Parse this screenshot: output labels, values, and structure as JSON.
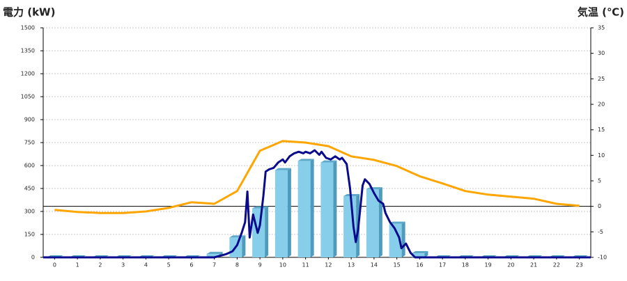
{
  "chart_data": {
    "type": "combo",
    "y_title": "電力 (kW)",
    "y2_title": "気温 (℃)",
    "y_title_color": "#1a6fc4",
    "y2_title_color": "#f39a1e",
    "categories": [
      "0",
      "1",
      "2",
      "3",
      "4",
      "5",
      "6",
      "7",
      "8",
      "9",
      "10",
      "11",
      "12",
      "13",
      "14",
      "15",
      "16",
      "17",
      "18",
      "19",
      "20",
      "21",
      "22",
      "23"
    ],
    "xlim": [
      -0.5,
      23.5
    ],
    "ylim": [
      0,
      1500
    ],
    "yticks": [
      0,
      150,
      300,
      450,
      600,
      750,
      900,
      1050,
      1200,
      1350,
      1500
    ],
    "y2lim": [
      -10,
      35
    ],
    "y2ticks": [
      -10,
      -5,
      0,
      5,
      10,
      15,
      20,
      25,
      30,
      35
    ],
    "grid": true,
    "series": [
      {
        "type": "bar",
        "color": "#87ceeb",
        "values": [
          0,
          0,
          0,
          0,
          0,
          0,
          0,
          22,
          130,
          320,
          570,
          630,
          620,
          400,
          445,
          220,
          27,
          0,
          0,
          0,
          0,
          0,
          0,
          0
        ]
      },
      {
        "type": "line",
        "color": "#0a0a8c",
        "x": [
          -0.5,
          7.0,
          7.5,
          7.8,
          8.0,
          8.2,
          8.35,
          8.45,
          8.55,
          8.7,
          8.9,
          9.0,
          9.15,
          9.25,
          9.4,
          9.6,
          9.8,
          10.0,
          10.1,
          10.3,
          10.5,
          10.7,
          10.9,
          11.0,
          11.2,
          11.4,
          11.6,
          11.7,
          11.9,
          12.1,
          12.3,
          12.5,
          12.6,
          12.8,
          12.95,
          13.1,
          13.2,
          13.3,
          13.5,
          13.6,
          13.8,
          14.0,
          14.2,
          14.4,
          14.5,
          14.7,
          14.9,
          15.1,
          15.2,
          15.4,
          15.6,
          15.8,
          23.5
        ],
        "values": [
          0,
          0,
          20,
          40,
          80,
          160,
          230,
          430,
          130,
          280,
          160,
          210,
          400,
          560,
          575,
          585,
          620,
          640,
          620,
          660,
          680,
          690,
          680,
          690,
          680,
          700,
          670,
          690,
          650,
          640,
          660,
          640,
          650,
          610,
          450,
          200,
          100,
          180,
          470,
          510,
          480,
          420,
          370,
          350,
          290,
          230,
          190,
          130,
          60,
          90,
          30,
          0,
          0
        ]
      },
      {
        "type": "line",
        "axis": "y2",
        "color": "#ffa500",
        "values": [
          -0.7,
          -1.1,
          -1.3,
          -1.3,
          -1.0,
          -0.3,
          0.8,
          0.5,
          3.0,
          10.9,
          12.8,
          12.5,
          11.8,
          9.8,
          9.1,
          7.9,
          5.9,
          4.5,
          3.0,
          2.3,
          1.9,
          1.5,
          0.5,
          0.1
        ]
      }
    ]
  }
}
